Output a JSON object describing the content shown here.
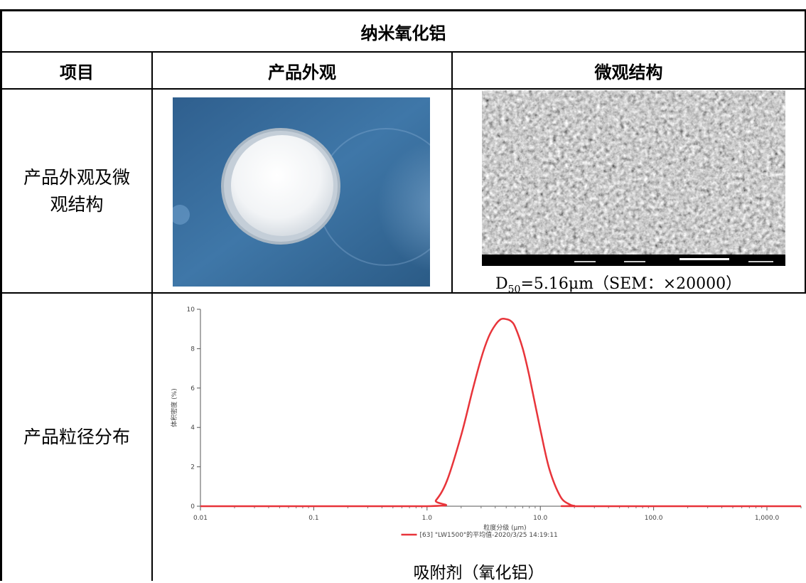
{
  "table": {
    "title": "纳米氧化铝",
    "headers": [
      "项目",
      "产品外观",
      "微观结构"
    ],
    "rows": [
      {
        "label_line1": "产品外观及微",
        "label_line2": "观结构"
      },
      {
        "label": "产品粒径分布"
      }
    ]
  },
  "images": {
    "product_photo": "white alumina powder in glass dish on blue background",
    "sem_image": "SEM micrograph of alumina particles",
    "sem_caption_prefix": "D",
    "sem_caption_sub": "50",
    "sem_caption_rest": "=5.16μm（SEM：×20000）"
  },
  "chart_data": {
    "type": "line",
    "xscale": "log",
    "xlim": [
      0.01,
      2000
    ],
    "ylim": [
      0,
      10
    ],
    "x_ticks": [
      0.01,
      0.1,
      1.0,
      10.0,
      100.0,
      1000.0
    ],
    "x_tick_labels": [
      "0.01",
      "0.1",
      "1.0",
      "10.0",
      "100.0",
      "1,000.0"
    ],
    "y_ticks": [
      0,
      2,
      4,
      6,
      8,
      10
    ],
    "y_tick_labels": [
      "0",
      "2",
      "4",
      "6",
      "8",
      "10"
    ],
    "xlabel": "粒度分级 (μm)",
    "ylabel": "体积密度 (%)",
    "series": [
      {
        "name": "[63] \"LW1500\"的平均值-2020/3/25 14:19:11",
        "color": "#e8343a",
        "x": [
          1.0,
          1.2,
          1.5,
          2.0,
          2.5,
          3.0,
          3.5,
          4.0,
          4.5,
          5.0,
          5.5,
          6.0,
          7.0,
          8.0,
          10.0,
          12.0,
          15.0,
          18.0,
          20.0,
          22.0
        ],
        "y": [
          0.0,
          0.3,
          1.3,
          3.6,
          5.8,
          7.5,
          8.6,
          9.2,
          9.5,
          9.5,
          9.4,
          9.1,
          8.0,
          6.6,
          3.9,
          1.9,
          0.5,
          0.1,
          0.02,
          0.0
        ]
      }
    ],
    "caption": "吸附剂（氧化铝）"
  }
}
